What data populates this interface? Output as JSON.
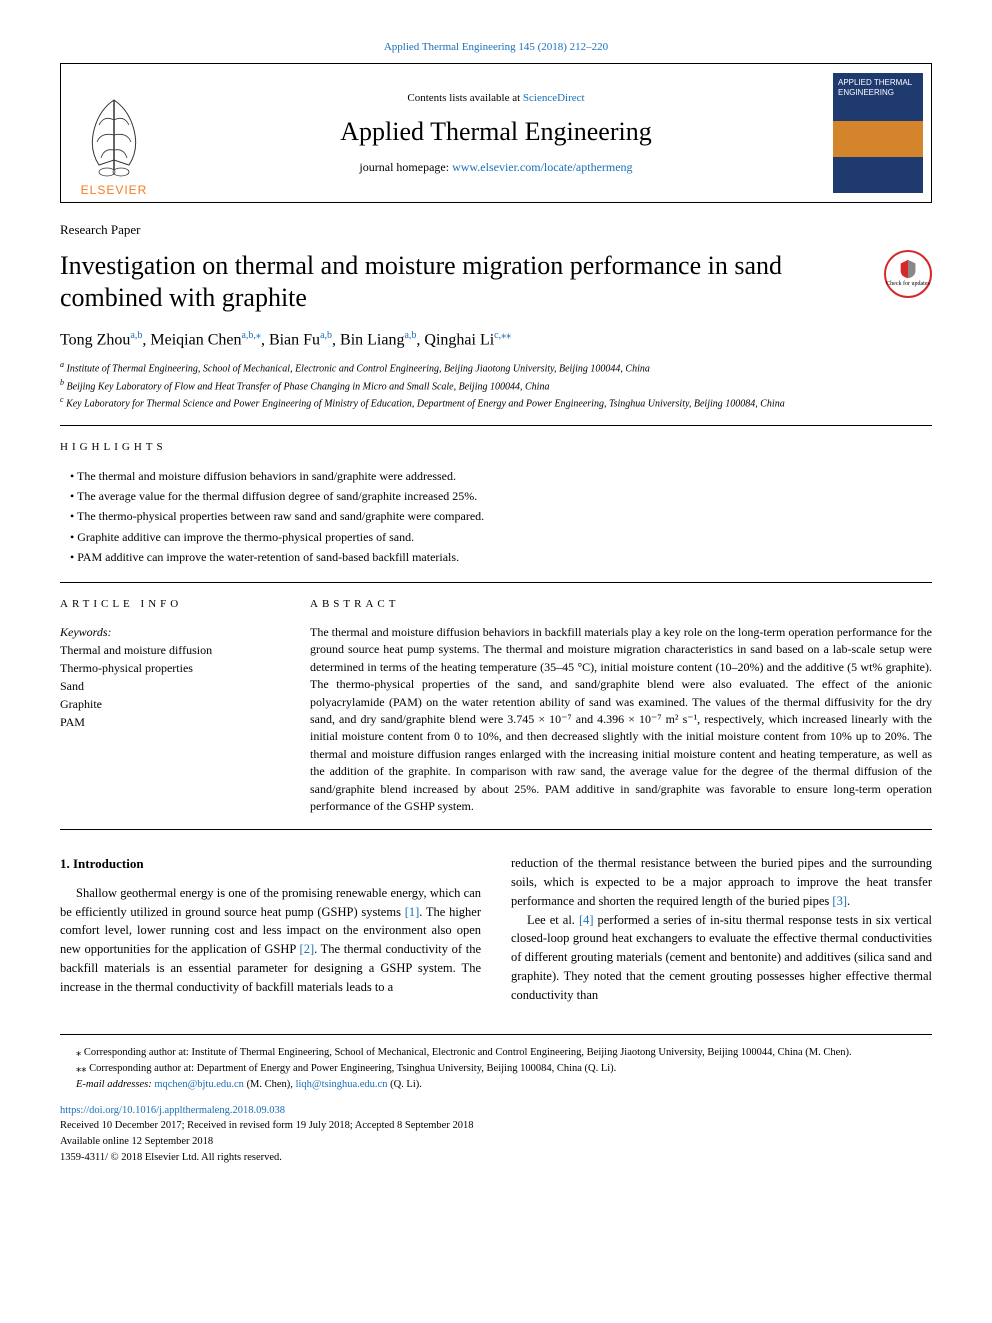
{
  "top_citation": "Applied Thermal Engineering 145 (2018) 212–220",
  "header": {
    "contents_prefix": "Contents lists available at ",
    "contents_link": "ScienceDirect",
    "journal_title": "Applied Thermal Engineering",
    "homepage_prefix": "journal homepage: ",
    "homepage_link": "www.elsevier.com/locate/apthermeng",
    "elsevier_text": "ELSEVIER",
    "cover_title": "APPLIED THERMAL ENGINEERING"
  },
  "article_type": "Research Paper",
  "article_title": "Investigation on thermal and moisture migration performance in sand combined with graphite",
  "updates_badge": "Check for updates",
  "authors_html": "Tong Zhou<sup>a,b</sup>, Meiqian Chen<sup>a,b,⁎</sup>, Bian Fu<sup>a,b</sup>, Bin Liang<sup>a,b</sup>, Qinghai Li<sup>c,⁎⁎</sup>",
  "affiliations": [
    {
      "sup": "a",
      "text": "Institute of Thermal Engineering, School of Mechanical, Electronic and Control Engineering, Beijing Jiaotong University, Beijing 100044, China"
    },
    {
      "sup": "b",
      "text": "Beijing Key Laboratory of Flow and Heat Transfer of Phase Changing in Micro and Small Scale, Beijing 100044, China"
    },
    {
      "sup": "c",
      "text": "Key Laboratory for Thermal Science and Power Engineering of Ministry of Education, Department of Energy and Power Engineering, Tsinghua University, Beijing 100084, China"
    }
  ],
  "highlights_label": "HIGHLIGHTS",
  "highlights": [
    "The thermal and moisture diffusion behaviors in sand/graphite were addressed.",
    "The average value for the thermal diffusion degree of sand/graphite increased 25%.",
    "The thermo-physical properties between raw sand and sand/graphite were compared.",
    "Graphite additive can improve the thermo-physical properties of sand.",
    "PAM additive can improve the water-retention of sand-based backfill materials."
  ],
  "article_info_label": "ARTICLE INFO",
  "keywords_label": "Keywords:",
  "keywords": [
    "Thermal and moisture diffusion",
    "Thermo-physical properties",
    "Sand",
    "Graphite",
    "PAM"
  ],
  "abstract_label": "ABSTRACT",
  "abstract_text": "The thermal and moisture diffusion behaviors in backfill materials play a key role on the long-term operation performance for the ground source heat pump systems. The thermal and moisture migration characteristics in sand based on a lab-scale setup were determined in terms of the heating temperature (35–45 °C), initial moisture content (10–20%) and the additive (5 wt% graphite). The thermo-physical properties of the sand, and sand/graphite blend were also evaluated. The effect of the anionic polyacrylamide (PAM) on the water retention ability of sand was examined. The values of the thermal diffusivity for the dry sand, and dry sand/graphite blend were 3.745 × 10⁻⁷ and 4.396 × 10⁻⁷ m² s⁻¹, respectively, which increased linearly with the initial moisture content from 0 to 10%, and then decreased slightly with the initial moisture content from 10% up to 20%. The thermal and moisture diffusion ranges enlarged with the increasing initial moisture content and heating temperature, as well as the addition of the graphite. In comparison with raw sand, the average value for the degree of the thermal diffusion of the sand/graphite blend increased by about 25%. PAM additive in sand/graphite was favorable to ensure long-term operation performance of the GSHP system.",
  "section_heading": "1. Introduction",
  "body_left": "Shallow geothermal energy is one of the promising renewable energy, which can be efficiently utilized in ground source heat pump (GSHP) systems [1]. The higher comfort level, lower running cost and less impact on the environment also open new opportunities for the application of GSHP [2]. The thermal conductivity of the backfill materials is an essential parameter for designing a GSHP system. The increase in the thermal conductivity of backfill materials leads to a",
  "body_right_p1": "reduction of the thermal resistance between the buried pipes and the surrounding soils, which is expected to be a major approach to improve the heat transfer performance and shorten the required length of the buried pipes [3].",
  "body_right_p2": "Lee et al. [4] performed a series of in-situ thermal response tests in six vertical closed-loop ground heat exchangers to evaluate the effective thermal conductivities of different grouting materials (cement and bentonite) and additives (silica sand and graphite). They noted that the cement grouting possesses higher effective thermal conductivity than",
  "footnotes": {
    "corr1": "⁎ Corresponding author at: Institute of Thermal Engineering, School of Mechanical, Electronic and Control Engineering, Beijing Jiaotong University, Beijing 100044, China (M. Chen).",
    "corr2": "⁎⁎ Corresponding author at: Department of Energy and Power Engineering, Tsinghua University, Beijing 100084, China (Q. Li).",
    "email_prefix": "E-mail addresses: ",
    "email1": "mqchen@bjtu.edu.cn",
    "email1_suffix": " (M. Chen), ",
    "email2": "liqh@tsinghua.edu.cn",
    "email2_suffix": " (Q. Li)."
  },
  "doi": {
    "link": "https://doi.org/10.1016/j.applthermaleng.2018.09.038",
    "received": "Received 10 December 2017; Received in revised form 19 July 2018; Accepted 8 September 2018",
    "available": "Available online 12 September 2018",
    "copyright": "1359-4311/ © 2018 Elsevier Ltd. All rights reserved."
  },
  "colors": {
    "link": "#1a6fb8",
    "elsevier_orange": "#f47b20",
    "badge_red": "#d62828"
  }
}
